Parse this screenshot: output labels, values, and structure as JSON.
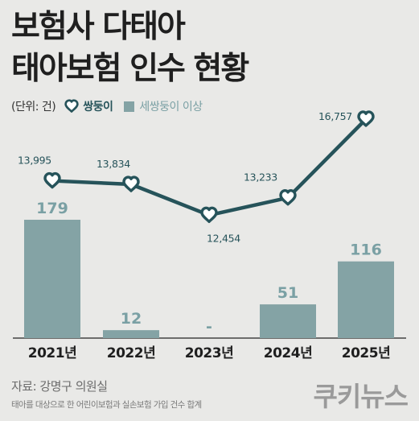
{
  "title_line1": "보험사 다태아",
  "title_line2": "태아보험 인수 현황",
  "legend": {
    "unit": "(단위: 건)",
    "series_a": "쌍둥이",
    "series_b": "세쌍둥이 이상"
  },
  "source": "자료: 강명구 의원실",
  "note": "태아를 대상으로 한 어린이보험과 실손보험 가입 건수 합계",
  "logo": "쿠키뉴스",
  "colors": {
    "line": "#26535a",
    "bar": "#84a3a5",
    "bar_label": "#7aa0a4",
    "text": "#1f1f1f"
  },
  "chart_data": {
    "type": "bar+line",
    "categories": [
      "2021년",
      "2022년",
      "2023년",
      "2024년",
      "2025년"
    ],
    "series": [
      {
        "name": "쌍둥이",
        "type": "line",
        "marker": "heart",
        "values": [
          13995,
          13834,
          12454,
          13233,
          16757
        ],
        "labels": [
          "13,995",
          "13,834",
          "12,454",
          "13,233",
          "16,757"
        ]
      },
      {
        "name": "세쌍둥이 이상",
        "type": "bar",
        "values": [
          179,
          12,
          null,
          51,
          116
        ],
        "labels": [
          "179",
          "12",
          "-",
          "51",
          "116"
        ]
      }
    ],
    "ylim_line": [
      9500,
      17000
    ],
    "ylim_bar": [
      0,
      260
    ],
    "grid": false
  }
}
